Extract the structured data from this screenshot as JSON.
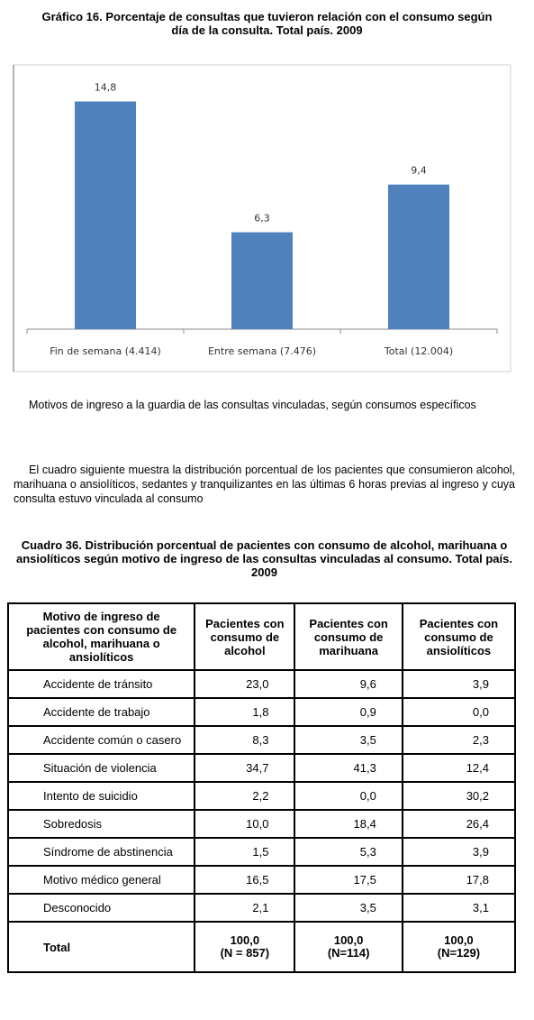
{
  "chart_data": {
    "type": "bar",
    "title": "Gráfico 16. Porcentaje de consultas que tuvieron relación con el consumo según día de la consulta. Total país. 2009",
    "categories": [
      "Fin de semana (4.414)",
      "Entre semana (7.476)",
      "Total (12.004)"
    ],
    "values": [
      14.8,
      6.3,
      9.4
    ],
    "value_labels": [
      "14,8",
      "6,3",
      "9,4"
    ],
    "color": "#4f81bd",
    "ylim": [
      0,
      17
    ]
  },
  "paragraphs": [
    "Motivos de ingreso a la guardia de las consultas vinculadas, según consumos específicos",
    "El cuadro siguiente muestra la distribución porcentual de los pacientes que consumieron alcohol, marihuana o ansiolíticos, sedantes y tranquilizantes en las últimas 6 horas previas al ingreso y cuya consulta estuvo vinculada al consumo"
  ],
  "table": {
    "title": "Cuadro 36. Distribución porcentual de pacientes con consumo de alcohol, marihuana o ansiolíticos según motivo de ingreso de las consultas vinculadas al consumo. Total país. 2009",
    "header": [
      "Motivo de ingreso de pacientes con consumo de alcohol, marihuana o ansiolíticos",
      "Pacientes con consumo de alcohol",
      "Pacientes con consumo de marihuana",
      "Pacientes con consumo de ansiolíticos"
    ],
    "rows": [
      [
        "Accidente de tránsito",
        "23,0",
        "9,6",
        "3,9"
      ],
      [
        "Accidente de trabajo",
        "1,8",
        "0,9",
        "0,0"
      ],
      [
        "Accidente común o casero",
        "8,3",
        "3,5",
        "2,3"
      ],
      [
        "Situación de violencia",
        "34,7",
        "41,3",
        "12,4"
      ],
      [
        "Intento de suicidio",
        "2,2",
        "0,0",
        "30,2"
      ],
      [
        "Sobredosis",
        "10,0",
        "18,4",
        "26,4"
      ],
      [
        "Síndrome de abstinencia",
        "1,5",
        "5,3",
        "3,9"
      ],
      [
        "Motivo médico general",
        "16,5",
        "17,5",
        "17,8"
      ],
      [
        "Desconocido",
        "2,1",
        "3,5",
        "3,1"
      ]
    ],
    "total": {
      "label": "Total",
      "cells": [
        {
          "value": "100,0",
          "n": "(N = 857)"
        },
        {
          "value": "100,0",
          "n": "(N=114)"
        },
        {
          "value": "100,0",
          "n": "(N=129)"
        }
      ]
    }
  }
}
